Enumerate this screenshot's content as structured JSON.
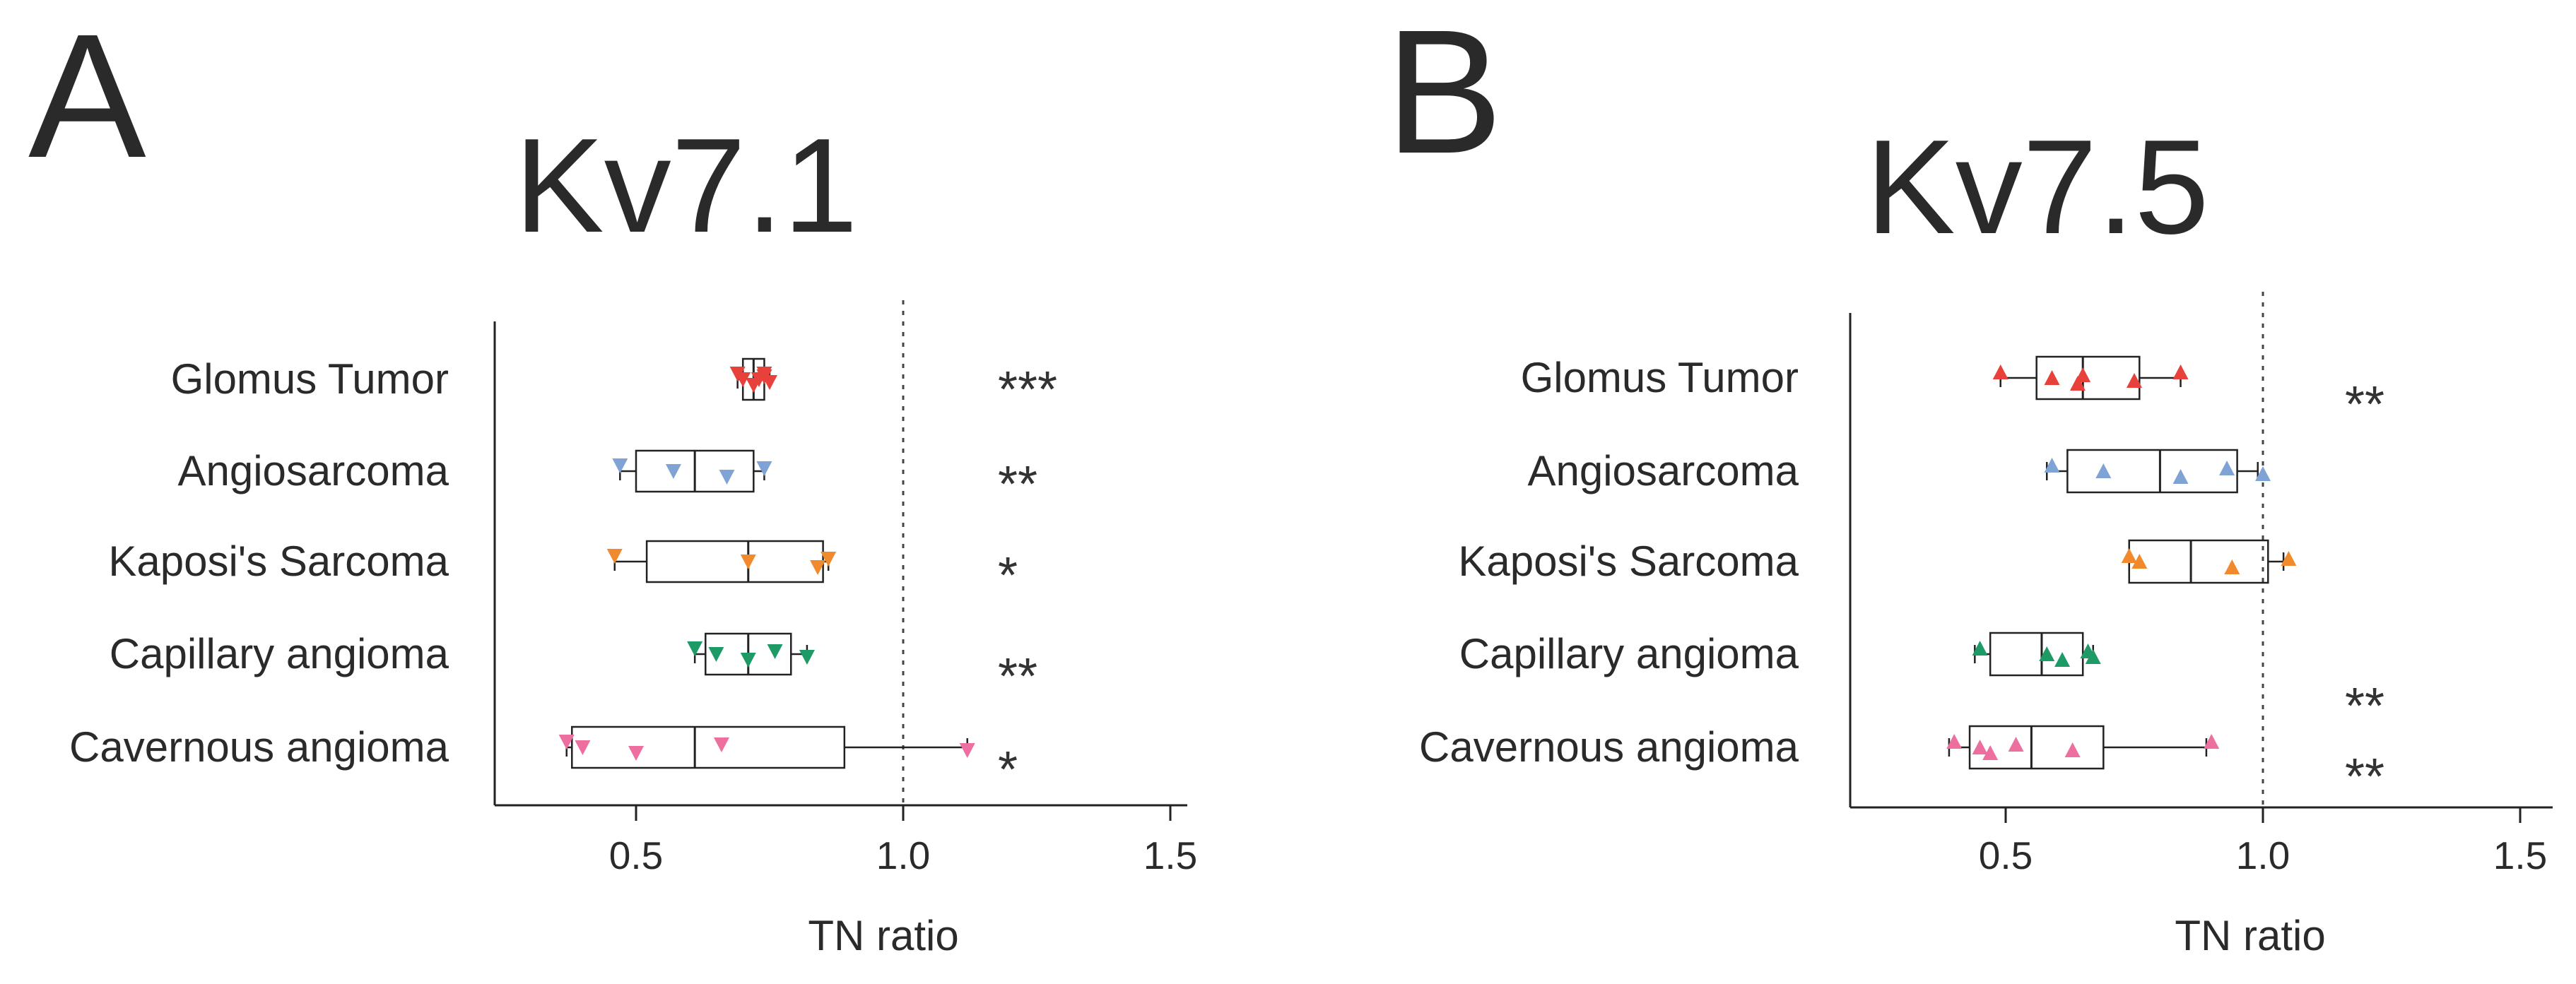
{
  "colors": {
    "Glomus Tumor": "#e8413c",
    "Angiosarcoma": "#7fa3d4",
    "Kaposi's Sarcoma": "#f08a2c",
    "Capillary angioma": "#1e9a66",
    "Cavernous angioma": "#ec6fa0",
    "ink": "#222222"
  },
  "chart_data": [
    {
      "type": "boxplot",
      "orientation": "horizontal",
      "panel_letter": "A",
      "title": "Kv7.1",
      "xlabel": "TN ratio",
      "ylabel": "",
      "xlim": [
        0.2,
        1.55
      ],
      "xticks": [
        0.5,
        1.0,
        1.5
      ],
      "xtick_labels": [
        "0.5",
        "1.0",
        "1.5"
      ],
      "reference_line": 1.0,
      "marker": "triangle-down",
      "categories": [
        "Glomus Tumor",
        "Angiosarcoma",
        "Kaposi's Sarcoma",
        "Capillary angioma",
        "Cavernous angioma"
      ],
      "series": [
        {
          "name": "Glomus Tumor",
          "whisker_low": 0.69,
          "q1": 0.7,
          "median": 0.72,
          "q3": 0.74,
          "whisker_high": 0.75,
          "points": [
            0.69,
            0.7,
            0.72,
            0.74,
            0.75,
            0.74,
            0.73
          ],
          "significance": "***"
        },
        {
          "name": "Angiosarcoma",
          "whisker_low": 0.47,
          "q1": 0.5,
          "median": 0.61,
          "q3": 0.72,
          "whisker_high": 0.74,
          "points": [
            0.47,
            0.57,
            0.67,
            0.74
          ],
          "significance": "**"
        },
        {
          "name": "Kaposi's Sarcoma",
          "whisker_low": 0.46,
          "q1": 0.52,
          "median": 0.71,
          "q3": 0.85,
          "whisker_high": 0.86,
          "points": [
            0.46,
            0.71,
            0.84,
            0.86
          ],
          "significance": "*"
        },
        {
          "name": "Capillary angioma",
          "whisker_low": 0.61,
          "q1": 0.63,
          "median": 0.71,
          "q3": 0.79,
          "whisker_high": 0.82,
          "points": [
            0.61,
            0.65,
            0.71,
            0.76,
            0.82
          ],
          "significance": "**"
        },
        {
          "name": "Cavernous angioma",
          "whisker_low": 0.37,
          "q1": 0.38,
          "median": 0.61,
          "q3": 0.89,
          "whisker_high": 1.12,
          "points": [
            0.37,
            0.4,
            0.5,
            0.66,
            1.12
          ],
          "significance": "*"
        }
      ]
    },
    {
      "type": "boxplot",
      "orientation": "horizontal",
      "panel_letter": "B",
      "title": "Kv7.5",
      "xlabel": "TN ratio",
      "ylabel": "",
      "xlim": [
        0.18,
        1.58
      ],
      "xticks": [
        0.5,
        1.0,
        1.5
      ],
      "xtick_labels": [
        "0.5",
        "1.0",
        "1.5"
      ],
      "reference_line": 1.0,
      "marker": "triangle-up",
      "categories": [
        "Glomus Tumor",
        "Angiosarcoma",
        "Kaposi's Sarcoma",
        "Capillary angioma",
        "Cavernous angioma"
      ],
      "series": [
        {
          "name": "Glomus Tumor",
          "whisker_low": 0.49,
          "q1": 0.56,
          "median": 0.65,
          "q3": 0.76,
          "whisker_high": 0.84,
          "points": [
            0.49,
            0.59,
            0.64,
            0.65,
            0.75,
            0.84
          ],
          "significance": "**"
        },
        {
          "name": "Angiosarcoma",
          "whisker_low": 0.58,
          "q1": 0.62,
          "median": 0.8,
          "q3": 0.95,
          "whisker_high": 0.99,
          "points": [
            0.59,
            0.69,
            0.84,
            0.93,
            1.0
          ],
          "significance": ""
        },
        {
          "name": "Kaposi's Sarcoma",
          "whisker_low": 0.74,
          "q1": 0.74,
          "median": 0.86,
          "q3": 1.01,
          "whisker_high": 1.04,
          "points": [
            0.74,
            0.76,
            0.94,
            1.05
          ],
          "significance": ""
        },
        {
          "name": "Capillary angioma",
          "whisker_low": 0.44,
          "q1": 0.47,
          "median": 0.57,
          "q3": 0.65,
          "whisker_high": 0.67,
          "points": [
            0.45,
            0.58,
            0.61,
            0.66,
            0.67
          ],
          "significance": "**"
        },
        {
          "name": "Cavernous angioma",
          "whisker_low": 0.39,
          "q1": 0.43,
          "median": 0.55,
          "q3": 0.69,
          "whisker_high": 0.89,
          "points": [
            0.4,
            0.45,
            0.47,
            0.52,
            0.63,
            0.9
          ],
          "significance": "**"
        }
      ]
    }
  ]
}
